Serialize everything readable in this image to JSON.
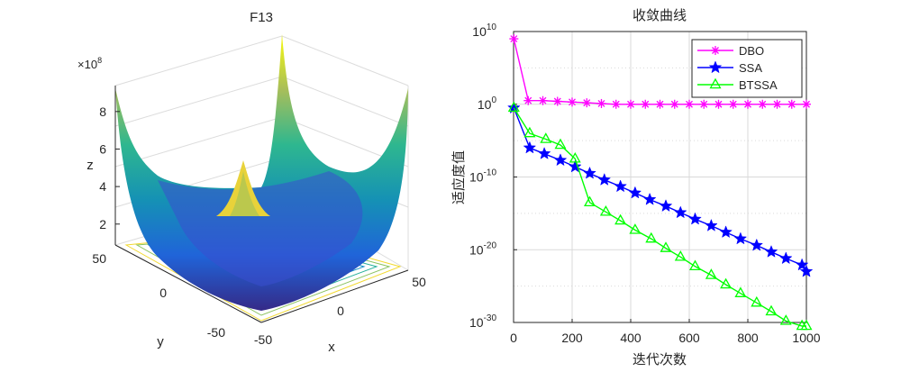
{
  "chart_data": [
    {
      "type": "surface3d",
      "title": "F13",
      "xlabel": "x",
      "ylabel": "y",
      "zlabel": "z",
      "z_multiplier": "×10",
      "z_exponent": "8",
      "x_ticks": [
        "-50",
        "0",
        "50"
      ],
      "y_ticks": [
        "-50",
        "0",
        "50"
      ],
      "z_ticks": [
        "2",
        "4",
        "6",
        "8"
      ],
      "xlim": [
        -50,
        50
      ],
      "ylim": [
        -50,
        50
      ],
      "zlim": [
        0,
        900000000
      ],
      "colormap": "parula"
    },
    {
      "type": "line",
      "title": "收敛曲线",
      "xlabel": "迭代次数",
      "ylabel": "适应度值",
      "xlim": [
        0,
        1000
      ],
      "y_scale": "log",
      "ylim_exponent": [
        -30,
        10
      ],
      "x_ticks": [
        "0",
        "200",
        "400",
        "600",
        "800",
        "1000"
      ],
      "y_ticks": [
        {
          "base": "10",
          "exp": "10"
        },
        {
          "base": "10",
          "exp": "0"
        },
        {
          "base": "10",
          "exp": "-10"
        },
        {
          "base": "10",
          "exp": "-20"
        },
        {
          "base": "10",
          "exp": "-30"
        }
      ],
      "legend_position": "top-right",
      "series": [
        {
          "name": "DBO",
          "color": "#ff00ff",
          "marker": "asterisk",
          "x": [
            1,
            50,
            100,
            150,
            200,
            250,
            300,
            350,
            400,
            450,
            500,
            550,
            600,
            650,
            700,
            750,
            800,
            850,
            900,
            950,
            1000
          ],
          "log10_y": [
            9.0,
            0.5,
            0.5,
            0.4,
            0.3,
            0.2,
            0.1,
            0.0,
            0.0,
            0.0,
            0.0,
            0.0,
            0.0,
            0.0,
            0.0,
            0.0,
            0.0,
            0.0,
            0.0,
            0.0,
            0.0
          ]
        },
        {
          "name": "SSA",
          "color": "#0000ff",
          "marker": "pentagram",
          "x": [
            1,
            55,
            105,
            160,
            210,
            260,
            310,
            365,
            415,
            465,
            520,
            570,
            620,
            675,
            725,
            775,
            830,
            880,
            930,
            985,
            1000
          ],
          "log10_y": [
            -0.5,
            -6.0,
            -6.8,
            -7.7,
            -8.6,
            -9.5,
            -10.4,
            -11.3,
            -12.2,
            -13.1,
            -14.0,
            -14.9,
            -15.8,
            -16.7,
            -17.6,
            -18.5,
            -19.4,
            -20.3,
            -21.2,
            -22.1,
            -23.0
          ]
        },
        {
          "name": "BTSSA",
          "color": "#00ff00",
          "marker": "triangle",
          "x": [
            1,
            55,
            110,
            160,
            210,
            260,
            315,
            365,
            415,
            470,
            520,
            570,
            620,
            675,
            725,
            775,
            830,
            880,
            930,
            985,
            1000
          ],
          "log10_y": [
            -0.5,
            -4.0,
            -4.8,
            -5.6,
            -7.5,
            -13.5,
            -14.8,
            -16.0,
            -17.3,
            -18.5,
            -19.8,
            -21.0,
            -22.3,
            -23.5,
            -24.8,
            -26.0,
            -27.3,
            -28.5,
            -29.8,
            -31.0,
            -32.0
          ]
        }
      ]
    }
  ]
}
